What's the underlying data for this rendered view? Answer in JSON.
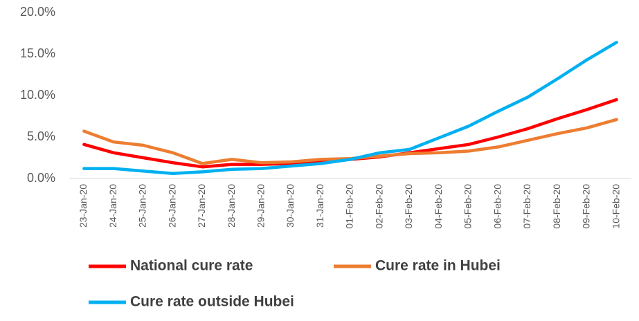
{
  "chart_data": {
    "type": "line",
    "categories": [
      "23-Jan-20",
      "24-Jan-20",
      "25-Jan-20",
      "26-Jan-20",
      "27-Jan-20",
      "28-Jan-20",
      "29-Jan-20",
      "30-Jan-20",
      "31-Jan-20",
      "01-Feb-20",
      "02-Feb-20",
      "03-Feb-20",
      "04-Feb-20",
      "05-Feb-20",
      "06-Feb-20",
      "07-Feb-20",
      "08-Feb-20",
      "09-Feb-20",
      "10-Feb-20"
    ],
    "series": [
      {
        "name": "National cure rate",
        "color": "#ff0000",
        "values": [
          4.1,
          3.1,
          2.5,
          1.9,
          1.4,
          1.7,
          1.7,
          1.8,
          2.1,
          2.3,
          2.6,
          3.1,
          3.6,
          4.1,
          5.0,
          6.0,
          7.2,
          8.3,
          9.5
        ]
      },
      {
        "name": "Cure rate in Hubei",
        "color": "#ed7d31",
        "values": [
          5.7,
          4.4,
          4.0,
          3.1,
          1.8,
          2.3,
          1.9,
          2.0,
          2.3,
          2.4,
          2.7,
          3.0,
          3.1,
          3.3,
          3.8,
          4.6,
          5.4,
          6.1,
          7.1
        ]
      },
      {
        "name": "Cure rate outside Hubei",
        "color": "#00b0f0",
        "values": [
          1.2,
          1.2,
          0.9,
          0.6,
          0.8,
          1.1,
          1.2,
          1.5,
          1.8,
          2.3,
          3.1,
          3.5,
          4.9,
          6.3,
          8.1,
          9.8,
          12.0,
          14.3,
          16.4
        ]
      }
    ],
    "ylim": [
      0,
      20
    ],
    "yticks": [
      {
        "value": 0,
        "label": "0.0%"
      },
      {
        "value": 5,
        "label": "5.0%"
      },
      {
        "value": 10,
        "label": "10.0%"
      },
      {
        "value": 15,
        "label": "15.0%"
      },
      {
        "value": 20,
        "label": "20.0%"
      }
    ],
    "grid": false
  }
}
